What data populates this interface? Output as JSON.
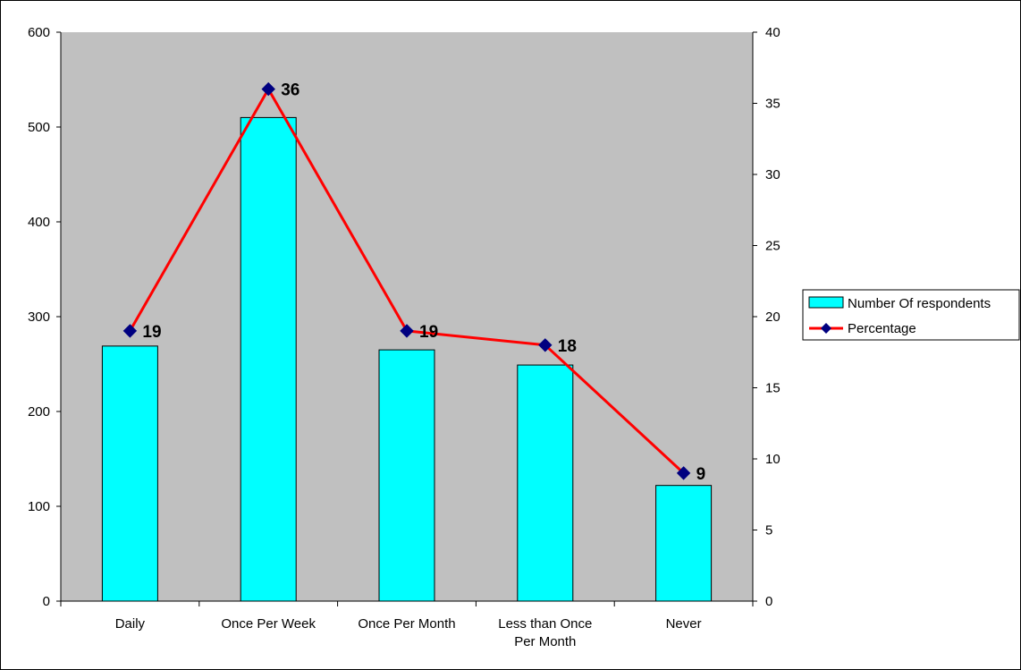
{
  "chart_data": {
    "type": "bar",
    "categories": [
      "Daily",
      "Once Per Week",
      "Once Per Month",
      "Less than Once Per  Month",
      "Never"
    ],
    "category_lines": [
      [
        "Daily"
      ],
      [
        "Once Per Week"
      ],
      [
        "Once Per Month"
      ],
      [
        "Less than Once",
        "Per  Month"
      ],
      [
        "Never"
      ]
    ],
    "series": [
      {
        "name": "Number Of respondents",
        "type": "bar",
        "axis": "left",
        "values": [
          269,
          510,
          265,
          249,
          122
        ],
        "color": "#00FFFF"
      },
      {
        "name": "Percentage",
        "type": "line",
        "axis": "right",
        "values": [
          19,
          36,
          19,
          18,
          9
        ],
        "data_labels": [
          "19",
          "36",
          "19",
          "18",
          "9"
        ],
        "color": "#FF0000",
        "marker_color": "#000080"
      }
    ],
    "y_left": {
      "ylim": [
        0,
        600
      ],
      "ticks": [
        "0",
        "100",
        "200",
        "300",
        "400",
        "500",
        "600"
      ]
    },
    "y_right": {
      "ylim": [
        0,
        40
      ],
      "ticks": [
        "0",
        "5",
        "10",
        "15",
        "20",
        "25",
        "30",
        "35",
        "40"
      ]
    },
    "plot_background": "#C0C0C0",
    "grid": false,
    "legend_position": "right"
  }
}
